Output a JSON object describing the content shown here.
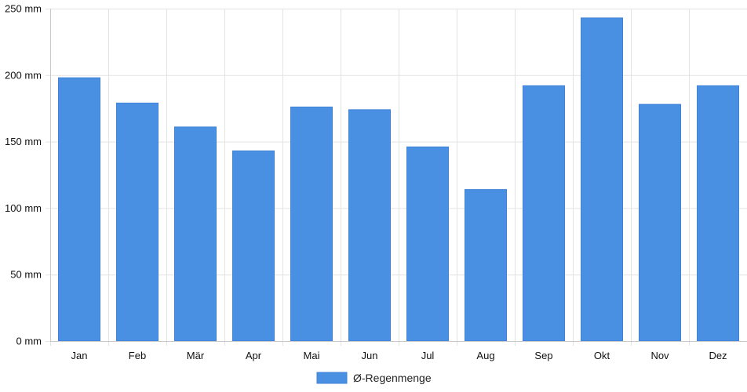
{
  "chart_data": {
    "type": "bar",
    "categories": [
      "Jan",
      "Feb",
      "Mär",
      "Apr",
      "Mai",
      "Jun",
      "Jul",
      "Aug",
      "Sep",
      "Okt",
      "Nov",
      "Dez"
    ],
    "series": [
      {
        "name": "Ø-Regenmenge",
        "values": [
          198,
          179,
          161,
          143,
          176,
          174,
          146,
          114,
          192,
          243,
          178,
          192
        ],
        "color": "#4a90e2"
      }
    ],
    "y_ticks": [
      "0 mm",
      "50 mm",
      "100 mm",
      "150 mm",
      "200 mm",
      "250 mm"
    ],
    "y_tick_values": [
      0,
      50,
      100,
      150,
      200,
      250
    ],
    "ylim": [
      0,
      250
    ],
    "grid": true,
    "legend_position": "bottom-center",
    "title": "",
    "xlabel": "",
    "ylabel": ""
  }
}
